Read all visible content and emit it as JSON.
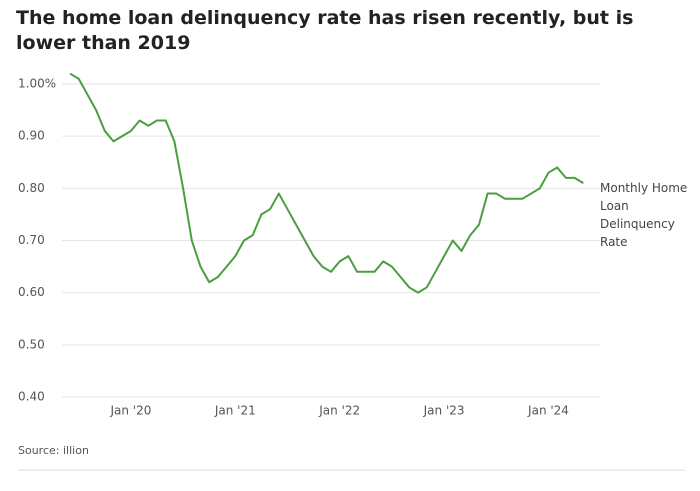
{
  "chart_data": {
    "type": "line",
    "title": "The home loan delinquency rate has risen recently, but is lower than 2019",
    "source": "Source: illion",
    "x": [
      "2019-06",
      "2019-07",
      "2019-08",
      "2019-09",
      "2019-10",
      "2019-11",
      "2019-12",
      "2020-01",
      "2020-02",
      "2020-03",
      "2020-04",
      "2020-05",
      "2020-06",
      "2020-07",
      "2020-08",
      "2020-09",
      "2020-10",
      "2020-11",
      "2020-12",
      "2021-01",
      "2021-02",
      "2021-03",
      "2021-04",
      "2021-05",
      "2021-06",
      "2021-07",
      "2021-08",
      "2021-09",
      "2021-10",
      "2021-11",
      "2021-12",
      "2022-01",
      "2022-02",
      "2022-03",
      "2022-04",
      "2022-05",
      "2022-06",
      "2022-07",
      "2022-08",
      "2022-09",
      "2022-10",
      "2022-11",
      "2022-12",
      "2023-01",
      "2023-02",
      "2023-03",
      "2023-04",
      "2023-05",
      "2023-06",
      "2023-07",
      "2023-08",
      "2023-09",
      "2023-10",
      "2023-11",
      "2023-12",
      "2024-01",
      "2024-02",
      "2024-03",
      "2024-04",
      "2024-05"
    ],
    "series": [
      {
        "name": "Monthly Home Loan Delinquency Rate",
        "color": "#4a9e3f",
        "values": [
          1.02,
          1.01,
          0.98,
          0.95,
          0.91,
          0.89,
          0.9,
          0.91,
          0.93,
          0.92,
          0.93,
          0.93,
          0.89,
          0.8,
          0.7,
          0.65,
          0.62,
          0.63,
          0.65,
          0.67,
          0.7,
          0.71,
          0.75,
          0.76,
          0.79,
          0.76,
          0.73,
          0.7,
          0.67,
          0.65,
          0.64,
          0.66,
          0.67,
          0.64,
          0.64,
          0.64,
          0.66,
          0.65,
          0.63,
          0.61,
          0.6,
          0.61,
          0.64,
          0.67,
          0.7,
          0.68,
          0.71,
          0.73,
          0.79,
          0.79,
          0.78,
          0.78,
          0.78,
          0.79,
          0.8,
          0.83,
          0.84,
          0.82,
          0.82,
          0.81
        ]
      }
    ],
    "ylim": [
      0.4,
      1.03
    ],
    "yticks": [
      {
        "value": 0.4,
        "label": "0.40"
      },
      {
        "value": 0.5,
        "label": "0.50"
      },
      {
        "value": 0.6,
        "label": "0.60"
      },
      {
        "value": 0.7,
        "label": "0.70"
      },
      {
        "value": 0.8,
        "label": "0.80"
      },
      {
        "value": 0.9,
        "label": "0.90"
      },
      {
        "value": 1.0,
        "label": "1.00%"
      }
    ],
    "xticks": [
      {
        "value": "2020-01",
        "label": "Jan '20"
      },
      {
        "value": "2021-01",
        "label": "Jan '21"
      },
      {
        "value": "2022-01",
        "label": "Jan '22"
      },
      {
        "value": "2023-01",
        "label": "Jan '23"
      },
      {
        "value": "2024-01",
        "label": "Jan '24"
      }
    ],
    "grid": true
  }
}
